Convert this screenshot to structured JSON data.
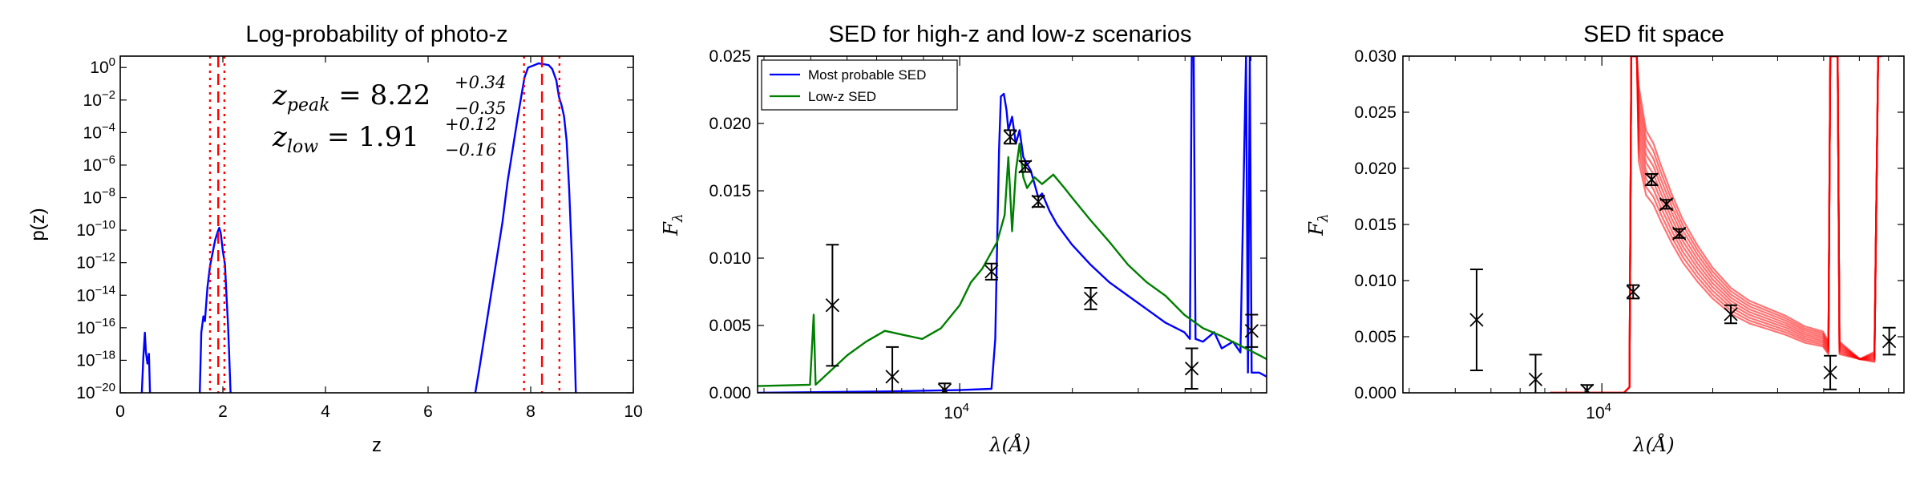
{
  "chart_data": [
    {
      "type": "line",
      "title": "Log-probability of photo-z",
      "xlabel": "z",
      "ylabel": "p(z)",
      "xlim": [
        0,
        10
      ],
      "ylim_log10": [
        -20,
        0.7
      ],
      "yscale": "log",
      "xticks": [
        "0",
        "2",
        "4",
        "6",
        "8",
        "10"
      ],
      "yticks": [
        {
          "base": "10",
          "exp": "0",
          "log": 0
        },
        {
          "base": "10",
          "exp": "−2",
          "log": -2
        },
        {
          "base": "10",
          "exp": "−4",
          "log": -4
        },
        {
          "base": "10",
          "exp": "−6",
          "log": -6
        },
        {
          "base": "10",
          "exp": "−8",
          "log": -8
        },
        {
          "base": "10",
          "exp": "−10",
          "log": -10
        },
        {
          "base": "10",
          "exp": "−12",
          "log": -12
        },
        {
          "base": "10",
          "exp": "−14",
          "log": -14
        },
        {
          "base": "10",
          "exp": "−16",
          "log": -16
        },
        {
          "base": "10",
          "exp": "−18",
          "log": -18
        },
        {
          "base": "10",
          "exp": "−20",
          "log": -20
        }
      ],
      "series": [
        {
          "color": "#0000ff",
          "segments": [
            [
              [
                0.42,
                -20
              ],
              [
                0.45,
                -17.8
              ],
              [
                0.48,
                -16.3
              ],
              [
                0.5,
                -17.5
              ],
              [
                0.53,
                -18.2
              ],
              [
                0.56,
                -17.6
              ],
              [
                0.58,
                -20
              ]
            ],
            [
              [
                1.55,
                -20
              ],
              [
                1.58,
                -16.3
              ],
              [
                1.62,
                -15.3
              ],
              [
                1.65,
                -15.6
              ],
              [
                1.7,
                -13.5
              ],
              [
                1.75,
                -12.2
              ],
              [
                1.8,
                -11.4
              ],
              [
                1.85,
                -10.6
              ],
              [
                1.9,
                -10.1
              ],
              [
                1.93,
                -9.85
              ],
              [
                1.96,
                -10.2
              ],
              [
                2.0,
                -11.3
              ],
              [
                2.04,
                -12.1
              ],
              [
                2.07,
                -14.0
              ],
              [
                2.1,
                -15.8
              ],
              [
                2.12,
                -17.4
              ],
              [
                2.15,
                -20
              ]
            ],
            [
              [
                6.92,
                -20
              ],
              [
                7.0,
                -18.5
              ],
              [
                7.15,
                -15.5
              ],
              [
                7.3,
                -12.5
              ],
              [
                7.45,
                -9.5
              ],
              [
                7.55,
                -7.0
              ],
              [
                7.65,
                -5.0
              ],
              [
                7.75,
                -3.0
              ],
              [
                7.82,
                -1.7
              ],
              [
                7.88,
                -0.6
              ],
              [
                7.95,
                0.0
              ],
              [
                8.05,
                0.12
              ],
              [
                8.15,
                0.25
              ],
              [
                8.25,
                0.2
              ],
              [
                8.35,
                0.15
              ],
              [
                8.42,
                -0.1
              ],
              [
                8.5,
                -0.8
              ],
              [
                8.55,
                -1.8
              ],
              [
                8.6,
                -2.3
              ],
              [
                8.65,
                -3.0
              ],
              [
                8.7,
                -4.5
              ],
              [
                8.75,
                -7.5
              ],
              [
                8.8,
                -11.5
              ],
              [
                8.85,
                -16.5
              ],
              [
                8.88,
                -20
              ]
            ]
          ]
        }
      ],
      "vlines": [
        {
          "x": 1.91,
          "style": "dashed",
          "color": "#ff0000"
        },
        {
          "x": 1.75,
          "style": "dotted",
          "color": "#ff0000"
        },
        {
          "x": 2.03,
          "style": "dotted",
          "color": "#ff0000"
        },
        {
          "x": 8.22,
          "style": "dashed",
          "color": "#ff0000"
        },
        {
          "x": 7.87,
          "style": "dotted",
          "color": "#ff0000"
        },
        {
          "x": 8.56,
          "style": "dotted",
          "color": "#ff0000"
        }
      ],
      "annotations": [
        {
          "var": "z",
          "sub": "peak",
          "eq": " = 8.22",
          "sup": "+0.34",
          "inf": "−0.35"
        },
        {
          "var": "z",
          "sub": "low",
          "eq": " = 1.91",
          "sup": "+0.12",
          "inf": "−0.16"
        }
      ]
    },
    {
      "type": "line",
      "title": "SED for high-z and low-z scenarios",
      "xlabel": "λ(Å)",
      "ylabel": "Fλ",
      "xscale": "log",
      "xlim_log10": [
        3.46,
        4.82
      ],
      "ylim": [
        0,
        0.025
      ],
      "xticks": [
        {
          "base": "10",
          "exp": "4",
          "log": 4
        }
      ],
      "yticks": [
        "0.000",
        "0.005",
        "0.010",
        "0.015",
        "0.020",
        "0.025"
      ],
      "legend": {
        "position": "top-left",
        "entries": [
          {
            "label": "Most probable SED",
            "color": "#0000ff"
          },
          {
            "label": "Low-z SED",
            "color": "#007f00"
          }
        ]
      },
      "series": [
        {
          "name": "Most probable SED",
          "color": "#0000ff",
          "points": [
            [
              3.46,
              0.0
            ],
            [
              3.8,
              0.0001
            ],
            [
              4.0,
              0.0002
            ],
            [
              4.085,
              0.0003
            ],
            [
              4.095,
              0.004
            ],
            [
              4.1,
              0.011
            ],
            [
              4.105,
              0.018
            ],
            [
              4.11,
              0.022
            ],
            [
              4.118,
              0.0222
            ],
            [
              4.125,
              0.021
            ],
            [
              4.13,
              0.0195
            ],
            [
              4.14,
              0.0205
            ],
            [
              4.15,
              0.0185
            ],
            [
              4.16,
              0.0195
            ],
            [
              4.17,
              0.0175
            ],
            [
              4.18,
              0.017
            ],
            [
              4.19,
              0.0165
            ],
            [
              4.2,
              0.0155
            ],
            [
              4.21,
              0.0145
            ],
            [
              4.22,
              0.0148
            ],
            [
              4.24,
              0.0135
            ],
            [
              4.26,
              0.0125
            ],
            [
              4.3,
              0.011
            ],
            [
              4.35,
              0.0095
            ],
            [
              4.4,
              0.0082
            ],
            [
              4.45,
              0.0072
            ],
            [
              4.5,
              0.0062
            ],
            [
              4.55,
              0.0052
            ],
            [
              4.6,
              0.0045
            ],
            [
              4.615,
              0.004
            ],
            [
              4.62,
              0.025
            ],
            [
              4.625,
              0.025
            ],
            [
              4.63,
              0.004
            ],
            [
              4.65,
              0.0038
            ],
            [
              4.68,
              0.0045
            ],
            [
              4.7,
              0.0033
            ],
            [
              4.73,
              0.0038
            ],
            [
              4.75,
              0.003
            ],
            [
              4.765,
              0.025
            ],
            [
              4.77,
              0.0015
            ],
            [
              4.775,
              0.025
            ],
            [
              4.78,
              0.0015
            ],
            [
              4.8,
              0.0015
            ],
            [
              4.82,
              0.0012
            ]
          ]
        },
        {
          "name": "Low-z SED",
          "color": "#007f00",
          "points": [
            [
              3.46,
              0.0005
            ],
            [
              3.6,
              0.0006
            ],
            [
              3.61,
              0.0058
            ],
            [
              3.615,
              0.0006
            ],
            [
              3.65,
              0.0015
            ],
            [
              3.7,
              0.0028
            ],
            [
              3.75,
              0.0038
            ],
            [
              3.8,
              0.0046
            ],
            [
              3.85,
              0.0043
            ],
            [
              3.9,
              0.004
            ],
            [
              3.95,
              0.0048
            ],
            [
              4.0,
              0.0065
            ],
            [
              4.03,
              0.0082
            ],
            [
              4.06,
              0.0092
            ],
            [
              4.08,
              0.0102
            ],
            [
              4.1,
              0.0112
            ],
            [
              4.12,
              0.0132
            ],
            [
              4.13,
              0.0175
            ],
            [
              4.14,
              0.012
            ],
            [
              4.15,
              0.0165
            ],
            [
              4.16,
              0.0185
            ],
            [
              4.17,
              0.016
            ],
            [
              4.18,
              0.0152
            ],
            [
              4.2,
              0.016
            ],
            [
              4.22,
              0.0155
            ],
            [
              4.25,
              0.0162
            ],
            [
              4.28,
              0.0152
            ],
            [
              4.3,
              0.0145
            ],
            [
              4.35,
              0.0128
            ],
            [
              4.4,
              0.0112
            ],
            [
              4.45,
              0.0095
            ],
            [
              4.5,
              0.0082
            ],
            [
              4.55,
              0.0072
            ],
            [
              4.6,
              0.0058
            ],
            [
              4.65,
              0.0048
            ],
            [
              4.7,
              0.0042
            ],
            [
              4.75,
              0.0035
            ],
            [
              4.8,
              0.0028
            ],
            [
              4.82,
              0.0025
            ]
          ]
        }
      ],
      "errorbars": [
        {
          "x": 3.66,
          "y": 0.0065,
          "yerr": 0.0045
        },
        {
          "x": 3.82,
          "y": 0.0012,
          "yerr": 0.0022
        },
        {
          "x": 3.96,
          "y": 0.0002,
          "yerr": 0.0005
        },
        {
          "x": 4.085,
          "y": 0.009,
          "yerr": 0.0006
        },
        {
          "x": 4.135,
          "y": 0.019,
          "yerr": 0.0005
        },
        {
          "x": 4.175,
          "y": 0.0168,
          "yerr": 0.0004
        },
        {
          "x": 4.21,
          "y": 0.0142,
          "yerr": 0.0004
        },
        {
          "x": 4.35,
          "y": 0.007,
          "yerr": 0.0008
        },
        {
          "x": 4.62,
          "y": 0.0018,
          "yerr": 0.0015
        },
        {
          "x": 4.78,
          "y": 0.0046,
          "yerr": 0.0012
        }
      ]
    },
    {
      "type": "line",
      "title": "SED fit space",
      "xlabel": "λ(Å)",
      "ylabel": "Fλ",
      "xscale": "log",
      "xlim_log10": [
        3.46,
        4.82
      ],
      "ylim": [
        0,
        0.03
      ],
      "xticks": [
        {
          "base": "10",
          "exp": "4",
          "log": 4
        }
      ],
      "yticks": [
        "0.000",
        "0.005",
        "0.010",
        "0.015",
        "0.020",
        "0.025",
        "0.030"
      ],
      "series": [
        {
          "color": "#ff0000",
          "note": "ensemble of fitted SEDs",
          "points": [
            [
              3.86,
              0.0
            ],
            [
              4.06,
              0.0
            ],
            [
              4.075,
              0.0005
            ],
            [
              4.08,
              0.03
            ],
            [
              4.095,
              0.03
            ],
            [
              4.1,
              0.024
            ],
            [
              4.12,
              0.0205
            ],
            [
              4.14,
              0.0195
            ],
            [
              4.16,
              0.0178
            ],
            [
              4.19,
              0.0155
            ],
            [
              4.22,
              0.0135
            ],
            [
              4.26,
              0.0115
            ],
            [
              4.3,
              0.0098
            ],
            [
              4.35,
              0.0082
            ],
            [
              4.4,
              0.0072
            ],
            [
              4.45,
              0.0066
            ],
            [
              4.5,
              0.006
            ],
            [
              4.55,
              0.0052
            ],
            [
              4.6,
              0.0048
            ],
            [
              4.615,
              0.004
            ],
            [
              4.62,
              0.03
            ],
            [
              4.64,
              0.03
            ],
            [
              4.645,
              0.004
            ],
            [
              4.7,
              0.003
            ],
            [
              4.74,
              0.0032
            ],
            [
              4.75,
              0.03
            ],
            [
              4.76,
              0.03
            ]
          ]
        }
      ],
      "errorbars": [
        {
          "x": 3.66,
          "y": 0.0065,
          "yerr": 0.0045
        },
        {
          "x": 3.82,
          "y": 0.0012,
          "yerr": 0.0022
        },
        {
          "x": 3.96,
          "y": 0.0002,
          "yerr": 0.0005
        },
        {
          "x": 4.085,
          "y": 0.009,
          "yerr": 0.0006
        },
        {
          "x": 4.135,
          "y": 0.019,
          "yerr": 0.0005
        },
        {
          "x": 4.175,
          "y": 0.0168,
          "yerr": 0.0004
        },
        {
          "x": 4.21,
          "y": 0.0142,
          "yerr": 0.0004
        },
        {
          "x": 4.35,
          "y": 0.007,
          "yerr": 0.0008
        },
        {
          "x": 4.62,
          "y": 0.0018,
          "yerr": 0.0015
        },
        {
          "x": 4.78,
          "y": 0.0046,
          "yerr": 0.0012
        }
      ]
    }
  ]
}
